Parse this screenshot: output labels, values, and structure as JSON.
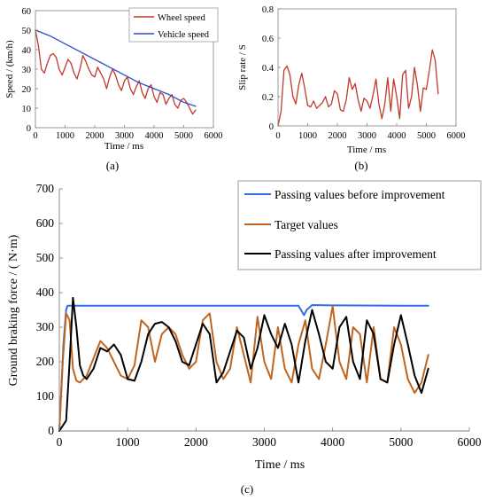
{
  "chart_data": [
    {
      "id": "a",
      "type": "line",
      "caption": "(a)",
      "xlabel": "Time / ms",
      "ylabel": "Speed / (km/h)",
      "xlim": [
        0,
        6000
      ],
      "ylim": [
        0,
        60
      ],
      "xticks": [
        0,
        1000,
        2000,
        3000,
        4000,
        5000,
        6000
      ],
      "yticks": [
        0,
        10,
        20,
        30,
        40,
        50,
        60
      ],
      "legend_position": "top-right",
      "series": [
        {
          "name": "Wheel speed",
          "color": "#c0392b",
          "x": [
            0,
            100,
            200,
            300,
            400,
            500,
            600,
            700,
            800,
            900,
            1000,
            1100,
            1200,
            1300,
            1400,
            1500,
            1600,
            1700,
            1800,
            1900,
            2000,
            2100,
            2200,
            2300,
            2400,
            2500,
            2600,
            2700,
            2800,
            2900,
            3000,
            3100,
            3200,
            3300,
            3400,
            3500,
            3600,
            3700,
            3800,
            3900,
            4000,
            4100,
            4200,
            4300,
            4400,
            4500,
            4600,
            4700,
            4800,
            4900,
            5000,
            5100,
            5200,
            5300,
            5400
          ],
          "y": [
            50,
            42,
            30,
            28,
            33,
            37,
            38,
            36,
            30,
            27,
            31,
            35,
            33,
            28,
            25,
            30,
            37,
            34,
            30,
            27,
            26,
            31,
            28,
            25,
            20,
            26,
            30,
            27,
            22,
            19,
            24,
            26,
            20,
            17,
            21,
            24,
            18,
            15,
            20,
            22,
            16,
            13,
            18,
            17,
            12,
            15,
            17,
            12,
            10,
            14,
            15,
            13,
            10,
            7,
            9
          ]
        },
        {
          "name": "Vehicle speed",
          "color": "#2e4fc9",
          "x": [
            0,
            500,
            1000,
            1500,
            2000,
            2500,
            3000,
            3500,
            4000,
            4500,
            5000,
            5400
          ],
          "y": [
            50,
            47,
            43,
            39,
            35,
            31,
            27,
            23,
            20,
            17,
            13,
            11
          ]
        }
      ]
    },
    {
      "id": "b",
      "type": "line",
      "caption": "(b)",
      "xlabel": "Time / ms",
      "ylabel": "Slip rate / S",
      "xlim": [
        0,
        6000
      ],
      "ylim": [
        0,
        0.8
      ],
      "xticks": [
        0,
        1000,
        2000,
        3000,
        4000,
        5000,
        6000
      ],
      "yticks": [
        0,
        0.2,
        0.4,
        0.6,
        0.8
      ],
      "series": [
        {
          "name": "",
          "color": "#c0392b",
          "x": [
            0,
            100,
            200,
            300,
            400,
            500,
            600,
            700,
            800,
            900,
            1000,
            1100,
            1200,
            1300,
            1400,
            1500,
            1600,
            1700,
            1800,
            1900,
            2000,
            2100,
            2200,
            2300,
            2400,
            2500,
            2600,
            2700,
            2800,
            2900,
            3000,
            3100,
            3200,
            3300,
            3400,
            3500,
            3600,
            3700,
            3800,
            3900,
            4000,
            4100,
            4200,
            4300,
            4400,
            4500,
            4600,
            4700,
            4800,
            4900,
            5000,
            5100,
            5200,
            5300,
            5400
          ],
          "y": [
            0,
            0.1,
            0.38,
            0.41,
            0.35,
            0.2,
            0.15,
            0.28,
            0.36,
            0.26,
            0.14,
            0.13,
            0.17,
            0.12,
            0.14,
            0.16,
            0.2,
            0.13,
            0.15,
            0.24,
            0.22,
            0.11,
            0.1,
            0.18,
            0.33,
            0.25,
            0.29,
            0.18,
            0.1,
            0.19,
            0.17,
            0.12,
            0.21,
            0.32,
            0.15,
            0.05,
            0.15,
            0.33,
            0.1,
            0.32,
            0.2,
            0.05,
            0.35,
            0.38,
            0.12,
            0.2,
            0.4,
            0.28,
            0.1,
            0.26,
            0.25,
            0.38,
            0.52,
            0.45,
            0.22
          ]
        }
      ]
    },
    {
      "id": "c",
      "type": "line",
      "caption": "(c)",
      "xlabel": "Time / ms",
      "ylabel": "Ground braking force / ( N·m)",
      "xlim": [
        0,
        6000
      ],
      "ylim": [
        0,
        700
      ],
      "xticks": [
        0,
        1000,
        2000,
        3000,
        4000,
        5000,
        6000
      ],
      "yticks": [
        0,
        100,
        200,
        300,
        400,
        500,
        600,
        700
      ],
      "legend_position": "top-right",
      "series": [
        {
          "name": "Passing values before improvement",
          "color": "#2f6fe0",
          "x": [
            0,
            60,
            100,
            120,
            150,
            500,
            1000,
            2000,
            3000,
            3500,
            3580,
            3620,
            3700,
            4000,
            5000,
            5400
          ],
          "y": [
            0,
            250,
            350,
            362,
            362,
            362,
            362,
            362,
            362,
            362,
            335,
            350,
            364,
            363,
            362,
            362
          ]
        },
        {
          "name": "Target values",
          "color": "#c0651f",
          "x": [
            0,
            50,
            100,
            150,
            200,
            250,
            300,
            400,
            500,
            600,
            700,
            800,
            900,
            1000,
            1100,
            1200,
            1300,
            1400,
            1500,
            1600,
            1700,
            1800,
            1900,
            2000,
            2100,
            2200,
            2300,
            2400,
            2500,
            2600,
            2700,
            2800,
            2900,
            3000,
            3100,
            3200,
            3300,
            3400,
            3500,
            3600,
            3700,
            3800,
            3900,
            4000,
            4100,
            4200,
            4300,
            4400,
            4500,
            4600,
            4700,
            4800,
            4900,
            5000,
            5100,
            5200,
            5300,
            5400
          ],
          "y": [
            0,
            200,
            340,
            320,
            180,
            145,
            140,
            160,
            210,
            260,
            240,
            200,
            160,
            150,
            190,
            320,
            300,
            200,
            280,
            300,
            280,
            220,
            180,
            200,
            320,
            340,
            200,
            150,
            180,
            300,
            220,
            140,
            330,
            200,
            150,
            300,
            180,
            140,
            250,
            320,
            180,
            150,
            250,
            360,
            200,
            150,
            300,
            280,
            140,
            300,
            150,
            140,
            300,
            250,
            150,
            110,
            140,
            220
          ]
        },
        {
          "name": "Passing values after improvement",
          "color": "#000000",
          "x": [
            0,
            100,
            150,
            200,
            250,
            300,
            350,
            400,
            500,
            600,
            700,
            800,
            900,
            1000,
            1100,
            1200,
            1300,
            1400,
            1500,
            1600,
            1700,
            1800,
            1900,
            2000,
            2100,
            2200,
            2300,
            2400,
            2500,
            2600,
            2700,
            2800,
            2900,
            3000,
            3100,
            3200,
            3300,
            3400,
            3500,
            3600,
            3700,
            3800,
            3900,
            4000,
            4100,
            4200,
            4300,
            4400,
            4500,
            4600,
            4700,
            4800,
            4900,
            5000,
            5100,
            5200,
            5300,
            5400
          ],
          "y": [
            0,
            30,
            200,
            385,
            300,
            190,
            160,
            150,
            180,
            240,
            230,
            250,
            220,
            150,
            145,
            200,
            280,
            310,
            315,
            300,
            260,
            200,
            190,
            250,
            310,
            280,
            140,
            170,
            230,
            290,
            270,
            180,
            240,
            335,
            280,
            240,
            310,
            250,
            140,
            260,
            350,
            280,
            200,
            180,
            300,
            330,
            200,
            150,
            320,
            280,
            150,
            140,
            250,
            335,
            250,
            160,
            110,
            180
          ]
        }
      ]
    }
  ]
}
